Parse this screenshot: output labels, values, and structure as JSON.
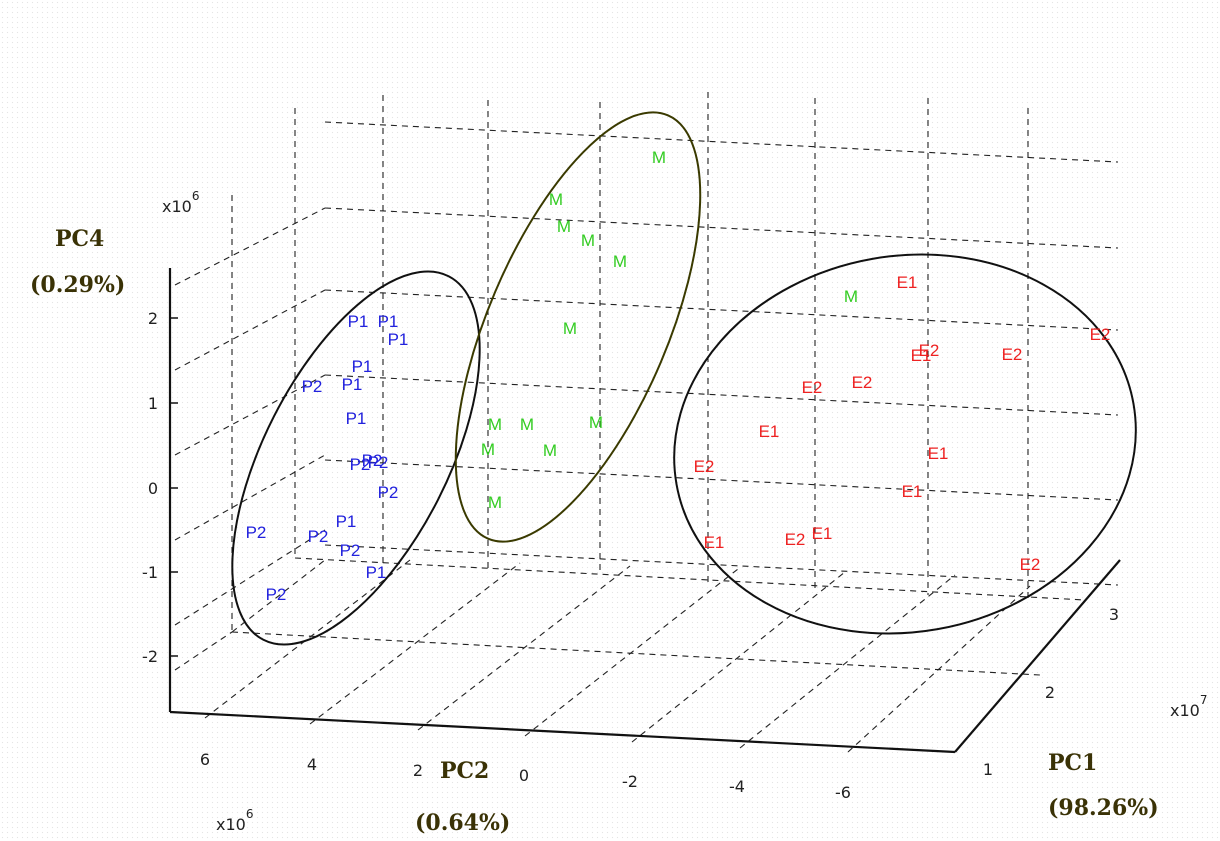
{
  "chart_data": {
    "type": "scatter",
    "projection": "3d",
    "axes": {
      "x": {
        "label": "PC1",
        "variance": "(98.26%)",
        "ticks": [
          "1",
          "2",
          "3"
        ],
        "multiplier": "x10",
        "exponent": "7"
      },
      "y": {
        "label": "PC2",
        "variance": "(0.64%)",
        "ticks": [
          "6",
          "4",
          "2",
          "0",
          "-2",
          "-4",
          "-6"
        ],
        "multiplier": "x10",
        "exponent": "6"
      },
      "z": {
        "label": "PC4",
        "variance": "(0.29%)",
        "ticks": [
          "2",
          "1",
          "0",
          "-1",
          "-2"
        ],
        "multiplier": "x10",
        "exponent": "6"
      }
    },
    "grid": true,
    "clusters": [
      {
        "name": "P",
        "color": "#2222dd",
        "ellipse_color": "#111111"
      },
      {
        "name": "M",
        "color": "#33cc22",
        "ellipse_color": "#333300"
      },
      {
        "name": "E",
        "color": "#ee2222",
        "ellipse_color": "#111111"
      }
    ],
    "points": [
      {
        "label": "P1",
        "cluster": "P"
      },
      {
        "label": "P1",
        "cluster": "P"
      },
      {
        "label": "P1",
        "cluster": "P"
      },
      {
        "label": "P1",
        "cluster": "P"
      },
      {
        "label": "P2",
        "cluster": "P"
      },
      {
        "label": "P1",
        "cluster": "P"
      },
      {
        "label": "P1",
        "cluster": "P"
      },
      {
        "label": "P2",
        "cluster": "P"
      },
      {
        "label": "P2",
        "cluster": "P"
      },
      {
        "label": "P2",
        "cluster": "P"
      },
      {
        "label": "P2",
        "cluster": "P"
      },
      {
        "label": "P1",
        "cluster": "P"
      },
      {
        "label": "P2",
        "cluster": "P"
      },
      {
        "label": "P2",
        "cluster": "P"
      },
      {
        "label": "P1",
        "cluster": "P"
      },
      {
        "label": "P2",
        "cluster": "P"
      },
      {
        "label": "P2",
        "cluster": "P"
      },
      {
        "label": "M",
        "cluster": "M"
      },
      {
        "label": "M",
        "cluster": "M"
      },
      {
        "label": "M",
        "cluster": "M"
      },
      {
        "label": "M",
        "cluster": "M"
      },
      {
        "label": "M",
        "cluster": "M"
      },
      {
        "label": "M",
        "cluster": "M"
      },
      {
        "label": "M",
        "cluster": "M"
      },
      {
        "label": "M",
        "cluster": "M"
      },
      {
        "label": "M",
        "cluster": "M"
      },
      {
        "label": "M",
        "cluster": "M"
      },
      {
        "label": "M",
        "cluster": "M"
      },
      {
        "label": "M",
        "cluster": "M"
      },
      {
        "label": "M",
        "cluster": "M"
      },
      {
        "label": "E1",
        "cluster": "E"
      },
      {
        "label": "E2",
        "cluster": "E"
      },
      {
        "label": "E2",
        "cluster": "E"
      },
      {
        "label": "E1",
        "cluster": "E"
      },
      {
        "label": "E2",
        "cluster": "E"
      },
      {
        "label": "E2",
        "cluster": "E"
      },
      {
        "label": "E2",
        "cluster": "E"
      },
      {
        "label": "E1",
        "cluster": "E"
      },
      {
        "label": "E1",
        "cluster": "E"
      },
      {
        "label": "E2",
        "cluster": "E"
      },
      {
        "label": "E1",
        "cluster": "E"
      },
      {
        "label": "E1",
        "cluster": "E"
      },
      {
        "label": "E2",
        "cluster": "E"
      },
      {
        "label": "E1",
        "cluster": "E"
      },
      {
        "label": "E2",
        "cluster": "E"
      },
      {
        "label": "E2",
        "cluster": "E"
      }
    ]
  }
}
